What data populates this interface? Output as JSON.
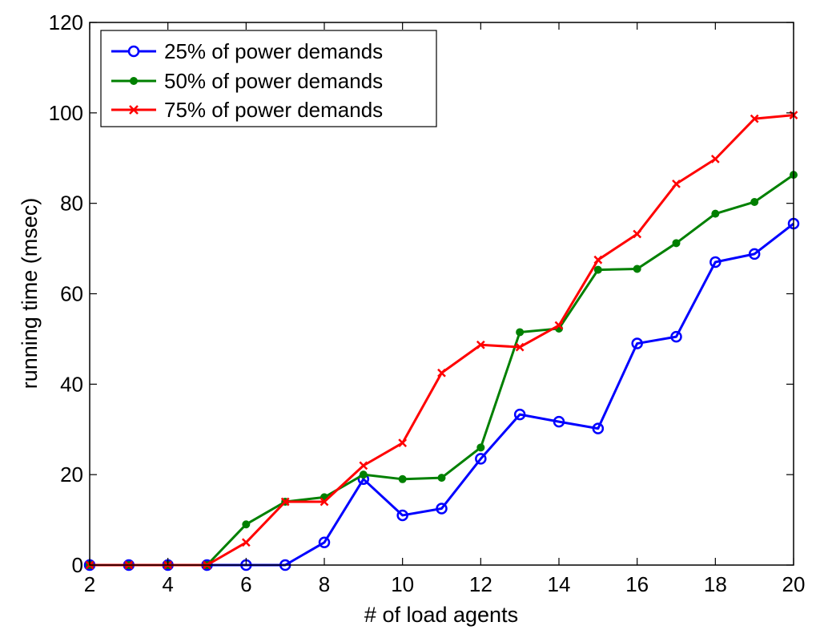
{
  "chart_data": {
    "type": "line",
    "title": "",
    "xlabel": "# of load agents",
    "ylabel": "running time (msec)",
    "xlim": [
      2,
      20
    ],
    "ylim": [
      0,
      120
    ],
    "xticks": [
      2,
      4,
      6,
      8,
      10,
      12,
      14,
      16,
      18,
      20
    ],
    "yticks": [
      0,
      20,
      40,
      60,
      80,
      100,
      120
    ],
    "grid": false,
    "legend_position": "top-left",
    "x": [
      2,
      3,
      4,
      5,
      6,
      7,
      8,
      9,
      10,
      11,
      12,
      13,
      14,
      15,
      16,
      17,
      18,
      19,
      20
    ],
    "series": [
      {
        "name": "25% of power demands",
        "color": "#0000ff",
        "marker": "circle-open",
        "values": [
          0,
          0,
          0,
          0,
          0,
          0,
          5,
          19,
          11,
          12.5,
          23.5,
          33.3,
          31.7,
          30.2,
          49,
          50.5,
          67,
          68.8,
          75.5
        ]
      },
      {
        "name": "50% of power demands",
        "color": "#008000",
        "marker": "dot-filled",
        "values": [
          0,
          0,
          0,
          0,
          9,
          14,
          15,
          20,
          19,
          19.3,
          26,
          51.5,
          52.3,
          65.3,
          65.5,
          71.2,
          77.7,
          80.3,
          86.3
        ]
      },
      {
        "name": "75% of power demands",
        "color": "#ff0000",
        "marker": "x",
        "values": [
          0,
          0,
          0,
          0,
          5,
          14,
          14,
          22,
          27,
          42.5,
          48.7,
          48.2,
          53,
          67.5,
          73.2,
          84.3,
          89.8,
          98.7,
          99.5
        ]
      }
    ]
  }
}
